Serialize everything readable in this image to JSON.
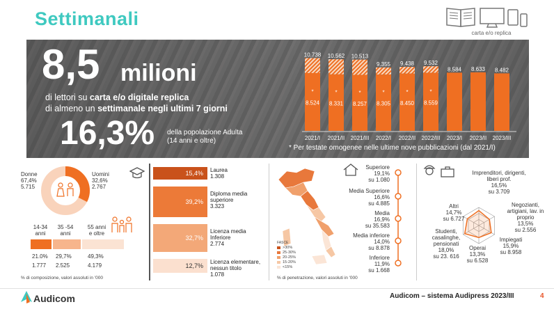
{
  "header": {
    "title": "Settimanali",
    "media_label": "carta e/o replica"
  },
  "hero": {
    "big_number": "8,5",
    "unit": "milioni",
    "line1_pre": "di lettori su ",
    "line1_bold": "carta e/o digitale replica",
    "line2_pre": "di almeno un ",
    "line2_bold": "settimanale negli ultimi 7 giorni",
    "pct": "16,3%",
    "pop_line1": "della popolazione Adulta",
    "pop_line2": "(14 anni e oltre)",
    "footnote": "* Per testate omogenee nelle ultime nove pubblicazioni (dal 2021/I)"
  },
  "chart_data": [
    {
      "type": "bar",
      "title": "",
      "categories": [
        "2021/I",
        "2021/II",
        "2021/III",
        "2022/I",
        "2022/II",
        "2022/III",
        "2023/I",
        "2023/II",
        "2023/III"
      ],
      "series": [
        {
          "values": [
            10738,
            10562,
            10513,
            9355,
            9438,
            9532,
            8584,
            8633,
            8482
          ]
        },
        {
          "values": [
            8524,
            8331,
            8257,
            8305,
            8450,
            8559,
            null,
            null,
            null
          ]
        }
      ],
      "value_labels": [
        "10.738",
        "10.562",
        "10.513",
        "9.355",
        "9.438",
        "9.532",
        "8.584",
        "8.633",
        "8.482"
      ],
      "inner_labels": [
        "8.524",
        "8.331",
        "8.257",
        "8.305",
        "8.450",
        "8.559"
      ],
      "asterisk_labels": [
        "*",
        "*",
        "*",
        "*",
        "*",
        "*"
      ],
      "ylim": [
        0,
        11500
      ]
    },
    {
      "type": "bar",
      "title": "Istruzione",
      "categories": [
        "Laurea",
        "Diploma media superiore",
        "Licenza media inferiore",
        "Licenza elementare, nessun titolo"
      ],
      "values": [
        15.4,
        39.2,
        32.7,
        12.7
      ]
    },
    {
      "type": "pie",
      "title": "Sesso",
      "categories": [
        "Donne",
        "Uomini"
      ],
      "values": [
        67.4,
        32.6
      ]
    },
    {
      "type": "bar",
      "title": "Età",
      "categories": [
        "14-34 anni",
        "35 -54 anni",
        "55 anni e oltre"
      ],
      "values": [
        21.0,
        29.7,
        49.3
      ]
    },
    {
      "type": "scatter",
      "title": "Professione",
      "categories": [
        "Imprenditori, dirigenti, liberi prof.",
        "Negozianti, artigiani, lav. in proprio",
        "Impiegati",
        "Operai",
        "Studenti, casalinghe, pensionati",
        "Altri"
      ],
      "values": [
        16.5,
        13.5,
        15.9,
        13.3,
        18.0,
        14.7
      ]
    }
  ],
  "sex": {
    "donne": {
      "label": "Donne",
      "pct": "67,4%",
      "abs": "5.715"
    },
    "uomini": {
      "label": "Uomini",
      "pct": "32,6%",
      "abs": "2.767"
    }
  },
  "age": {
    "groups": [
      {
        "label1": "14-34",
        "label2": "anni",
        "pct": "21.0%",
        "abs": "1.777"
      },
      {
        "label1": "35 -54",
        "label2": "anni",
        "pct": "29,7%",
        "abs": "2.525"
      },
      {
        "label1": "55 anni",
        "label2": "e oltre",
        "pct": "49,3%",
        "abs": "4.179"
      }
    ],
    "note": "% di composizione, valori assoluti in '000"
  },
  "education": [
    {
      "pct": "15,4%",
      "name": "Laurea",
      "abs": "1.308",
      "color": "#c9521b"
    },
    {
      "pct": "39,2%",
      "name": "Diploma media superiore",
      "abs": "3.323",
      "color": "#ec7a38"
    },
    {
      "pct": "32,7%",
      "name": "Licenza media Inferiore",
      "abs": "2.774",
      "color": "#f3a878"
    },
    {
      "pct": "12,7%",
      "name": "Licenza elementare, nessun titolo",
      "abs": "1.078",
      "color": "#fbe0cf"
    }
  ],
  "map": {
    "legend_title": "FASCE",
    "legend": [
      ">30%",
      "25-30%",
      "20-25%",
      "15-20%",
      "<15%"
    ],
    "legend_colors": [
      "#c9521b",
      "#e8783b",
      "#f0a06c",
      "#f6c7a4",
      "#fbe5d6"
    ],
    "note": "% di penetrazione, valori assoluti in '000"
  },
  "study_levels": [
    {
      "name": "Superiore",
      "pct": "19,1%",
      "abs": "su 1.080"
    },
    {
      "name": "Media Superiore",
      "pct": "16,6%",
      "abs": "su 4.885"
    },
    {
      "name": "Media",
      "pct": "16,9%",
      "abs": "su 35.583"
    },
    {
      "name": "Media inferiore",
      "pct": "14,0%",
      "abs": "su 8.878"
    },
    {
      "name": "Inferiore",
      "pct": "11,9%",
      "abs": "su 1.668"
    }
  ],
  "professions": [
    {
      "name": "Imprenditori, dirigenti, liberi prof.",
      "pct": "16,5%",
      "abs": "su 3.709"
    },
    {
      "name": "Negozianti, artigiani, lav. in proprio",
      "pct": "13,5%",
      "abs": "su 2.556"
    },
    {
      "name": "Impiegati",
      "pct": "15,9%",
      "abs": "su 8.958"
    },
    {
      "name": "Operai",
      "pct": "13,3%",
      "abs": "su 6.528"
    },
    {
      "name": "Studenti, casalinghe, pensionati",
      "pct": "18,0%",
      "abs": "su 23. 616"
    },
    {
      "name": "Altri",
      "pct": "14,7%",
      "abs": "su 6.727"
    }
  ],
  "footer": {
    "logo": "Audicom",
    "right": "Audicom – sistema Audipress 2023/III",
    "page": "4"
  },
  "colors": {
    "accent": "#3fc9c0",
    "orange": "#ef6f22",
    "dark_orange": "#c9521b",
    "light_orange": "#f9d3bb"
  }
}
